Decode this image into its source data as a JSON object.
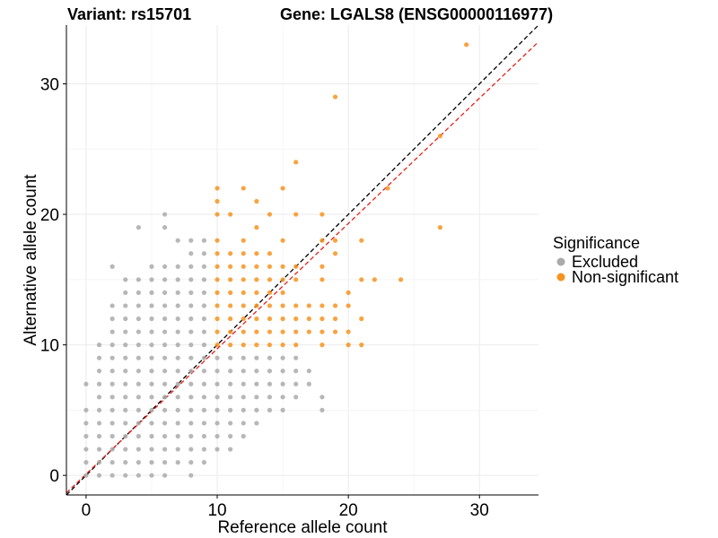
{
  "chart_data": {
    "type": "scatter",
    "title_left": "Variant: rs15701",
    "title_right": "Gene: LGALS8 (ENSG00000116977)",
    "xlabel": "Reference allele count",
    "ylabel": "Alternative allele count",
    "xlim": [
      -1.5,
      34.5
    ],
    "ylim": [
      -1.5,
      34.5
    ],
    "x_ticks": [
      0,
      10,
      20,
      30
    ],
    "y_ticks": [
      0,
      10,
      20,
      30
    ],
    "grid": true,
    "legend": {
      "title": "Significance",
      "position": "right",
      "entries": [
        {
          "label": "Excluded",
          "color": "#aaaaaa"
        },
        {
          "label": "Non-significant",
          "color": "#f7931e"
        }
      ]
    },
    "reference_lines": [
      {
        "name": "identity",
        "color": "#000000",
        "style": "dashed",
        "slope": 1,
        "intercept": 0
      },
      {
        "name": "fit",
        "color": "#e8201a",
        "style": "dashed",
        "slope": 0.96,
        "intercept": 0.1
      }
    ],
    "series": [
      {
        "name": "Excluded",
        "color": "#aaaaaa",
        "points": [
          [
            0,
            7
          ],
          [
            0,
            5
          ],
          [
            0,
            4
          ],
          [
            0,
            3
          ],
          [
            0,
            2
          ],
          [
            0,
            1
          ],
          [
            0,
            0
          ],
          [
            1,
            10
          ],
          [
            1,
            9
          ],
          [
            1,
            8
          ],
          [
            1,
            7
          ],
          [
            1,
            6
          ],
          [
            1,
            5
          ],
          [
            1,
            4
          ],
          [
            1,
            3
          ],
          [
            1,
            2
          ],
          [
            1,
            1
          ],
          [
            1,
            0
          ],
          [
            2,
            16
          ],
          [
            2,
            13
          ],
          [
            2,
            12
          ],
          [
            2,
            11
          ],
          [
            2,
            10
          ],
          [
            2,
            9
          ],
          [
            2,
            8
          ],
          [
            2,
            7
          ],
          [
            2,
            6
          ],
          [
            2,
            5
          ],
          [
            2,
            4
          ],
          [
            2,
            3
          ],
          [
            2,
            2
          ],
          [
            2,
            1
          ],
          [
            2,
            0
          ],
          [
            3,
            15
          ],
          [
            3,
            14
          ],
          [
            3,
            13
          ],
          [
            3,
            12
          ],
          [
            3,
            11
          ],
          [
            3,
            10
          ],
          [
            3,
            9
          ],
          [
            3,
            8
          ],
          [
            3,
            7
          ],
          [
            3,
            6
          ],
          [
            3,
            5
          ],
          [
            3,
            4
          ],
          [
            3,
            3
          ],
          [
            3,
            2
          ],
          [
            3,
            1
          ],
          [
            3,
            0
          ],
          [
            4,
            19
          ],
          [
            4,
            15
          ],
          [
            4,
            14
          ],
          [
            4,
            13
          ],
          [
            4,
            12
          ],
          [
            4,
            11
          ],
          [
            4,
            10
          ],
          [
            4,
            9
          ],
          [
            4,
            8
          ],
          [
            4,
            7
          ],
          [
            4,
            6
          ],
          [
            4,
            5
          ],
          [
            4,
            4
          ],
          [
            4,
            3
          ],
          [
            4,
            2
          ],
          [
            4,
            1
          ],
          [
            4,
            0
          ],
          [
            5,
            16
          ],
          [
            5,
            15
          ],
          [
            5,
            14
          ],
          [
            5,
            13
          ],
          [
            5,
            12
          ],
          [
            5,
            11
          ],
          [
            5,
            10
          ],
          [
            5,
            9
          ],
          [
            5,
            8
          ],
          [
            5,
            7
          ],
          [
            5,
            6
          ],
          [
            5,
            5
          ],
          [
            5,
            4
          ],
          [
            5,
            3
          ],
          [
            5,
            2
          ],
          [
            5,
            1
          ],
          [
            5,
            0
          ],
          [
            6,
            20
          ],
          [
            6,
            19
          ],
          [
            6,
            16
          ],
          [
            6,
            15
          ],
          [
            6,
            14
          ],
          [
            6,
            13
          ],
          [
            6,
            12
          ],
          [
            6,
            11
          ],
          [
            6,
            10
          ],
          [
            6,
            9
          ],
          [
            6,
            8
          ],
          [
            6,
            7
          ],
          [
            6,
            6
          ],
          [
            6,
            5
          ],
          [
            6,
            4
          ],
          [
            6,
            3
          ],
          [
            6,
            2
          ],
          [
            6,
            1
          ],
          [
            6,
            0
          ],
          [
            7,
            18
          ],
          [
            7,
            16
          ],
          [
            7,
            15
          ],
          [
            7,
            14
          ],
          [
            7,
            13
          ],
          [
            7,
            12
          ],
          [
            7,
            11
          ],
          [
            7,
            10
          ],
          [
            7,
            9
          ],
          [
            7,
            8
          ],
          [
            7,
            7
          ],
          [
            7,
            6
          ],
          [
            7,
            5
          ],
          [
            7,
            4
          ],
          [
            7,
            3
          ],
          [
            7,
            2
          ],
          [
            7,
            1
          ],
          [
            8,
            18
          ],
          [
            8,
            17
          ],
          [
            8,
            16
          ],
          [
            8,
            15
          ],
          [
            8,
            14
          ],
          [
            8,
            13
          ],
          [
            8,
            12
          ],
          [
            8,
            11
          ],
          [
            8,
            10
          ],
          [
            8,
            9
          ],
          [
            8,
            8
          ],
          [
            8,
            7
          ],
          [
            8,
            6
          ],
          [
            8,
            5
          ],
          [
            8,
            4
          ],
          [
            8,
            3
          ],
          [
            8,
            2
          ],
          [
            8,
            1
          ],
          [
            8,
            0
          ],
          [
            9,
            18
          ],
          [
            9,
            17
          ],
          [
            9,
            16
          ],
          [
            9,
            15
          ],
          [
            9,
            14
          ],
          [
            9,
            13
          ],
          [
            9,
            12
          ],
          [
            9,
            11
          ],
          [
            9,
            10
          ],
          [
            9,
            9
          ],
          [
            9,
            8
          ],
          [
            9,
            7
          ],
          [
            9,
            6
          ],
          [
            9,
            5
          ],
          [
            9,
            4
          ],
          [
            9,
            3
          ],
          [
            9,
            2
          ],
          [
            9,
            1
          ],
          [
            10,
            9
          ],
          [
            10,
            8
          ],
          [
            10,
            7
          ],
          [
            10,
            6
          ],
          [
            10,
            5
          ],
          [
            10,
            4
          ],
          [
            10,
            3
          ],
          [
            10,
            2
          ],
          [
            11,
            9
          ],
          [
            11,
            8
          ],
          [
            11,
            7
          ],
          [
            11,
            6
          ],
          [
            11,
            5
          ],
          [
            11,
            4
          ],
          [
            11,
            3
          ],
          [
            11,
            2
          ],
          [
            12,
            9
          ],
          [
            12,
            8
          ],
          [
            12,
            7
          ],
          [
            12,
            6
          ],
          [
            12,
            5
          ],
          [
            12,
            4
          ],
          [
            12,
            3
          ],
          [
            13,
            9
          ],
          [
            13,
            8
          ],
          [
            13,
            7
          ],
          [
            13,
            6
          ],
          [
            13,
            5
          ],
          [
            13,
            4
          ],
          [
            14,
            9
          ],
          [
            14,
            8
          ],
          [
            14,
            7
          ],
          [
            14,
            6
          ],
          [
            14,
            5
          ],
          [
            15,
            9
          ],
          [
            15,
            8
          ],
          [
            15,
            7
          ],
          [
            15,
            6
          ],
          [
            15,
            5
          ],
          [
            16,
            9
          ],
          [
            16,
            8
          ],
          [
            16,
            7
          ],
          [
            16,
            6
          ],
          [
            17,
            8
          ],
          [
            17,
            7
          ],
          [
            18,
            6
          ],
          [
            18,
            5
          ]
        ]
      },
      {
        "name": "Non-significant",
        "color": "#f7931e",
        "points": [
          [
            29,
            33
          ],
          [
            19,
            29
          ],
          [
            16,
            24
          ],
          [
            15,
            22
          ],
          [
            27,
            26
          ],
          [
            27,
            19
          ],
          [
            23,
            22
          ],
          [
            10,
            22
          ],
          [
            10,
            21
          ],
          [
            10,
            20
          ],
          [
            10,
            18
          ],
          [
            10,
            17
          ],
          [
            10,
            16
          ],
          [
            10,
            15
          ],
          [
            10,
            14
          ],
          [
            10,
            13
          ],
          [
            10,
            12
          ],
          [
            10,
            11
          ],
          [
            10,
            10
          ],
          [
            11,
            20
          ],
          [
            11,
            17
          ],
          [
            11,
            16
          ],
          [
            11,
            15
          ],
          [
            11,
            14
          ],
          [
            11,
            13
          ],
          [
            11,
            12
          ],
          [
            11,
            11
          ],
          [
            11,
            10
          ],
          [
            12,
            22
          ],
          [
            12,
            18
          ],
          [
            12,
            17
          ],
          [
            12,
            16
          ],
          [
            12,
            15
          ],
          [
            12,
            14
          ],
          [
            12,
            13
          ],
          [
            12,
            12
          ],
          [
            12,
            11
          ],
          [
            12,
            10
          ],
          [
            13,
            21
          ],
          [
            13,
            19
          ],
          [
            13,
            17
          ],
          [
            13,
            16
          ],
          [
            13,
            15
          ],
          [
            13,
            14
          ],
          [
            13,
            13
          ],
          [
            13,
            12
          ],
          [
            13,
            11
          ],
          [
            13,
            10
          ],
          [
            14,
            20
          ],
          [
            14,
            17
          ],
          [
            14,
            16
          ],
          [
            14,
            15
          ],
          [
            14,
            14
          ],
          [
            14,
            13
          ],
          [
            14,
            12
          ],
          [
            14,
            11
          ],
          [
            14,
            10
          ],
          [
            15,
            18
          ],
          [
            15,
            16
          ],
          [
            15,
            15
          ],
          [
            15,
            14
          ],
          [
            15,
            13
          ],
          [
            15,
            12
          ],
          [
            15,
            11
          ],
          [
            15,
            10
          ],
          [
            16,
            20
          ],
          [
            16,
            16
          ],
          [
            16,
            15
          ],
          [
            16,
            13
          ],
          [
            16,
            12
          ],
          [
            16,
            11
          ],
          [
            16,
            10
          ],
          [
            17,
            13
          ],
          [
            17,
            12
          ],
          [
            17,
            11
          ],
          [
            18,
            20
          ],
          [
            18,
            18
          ],
          [
            18,
            16
          ],
          [
            18,
            15
          ],
          [
            18,
            13
          ],
          [
            18,
            12
          ],
          [
            18,
            11
          ],
          [
            18,
            10
          ],
          [
            19,
            18
          ],
          [
            19,
            17
          ],
          [
            19,
            13
          ],
          [
            19,
            12
          ],
          [
            19,
            11
          ],
          [
            20,
            14
          ],
          [
            20,
            13
          ],
          [
            20,
            11
          ],
          [
            20,
            10
          ],
          [
            21,
            18
          ],
          [
            21,
            15
          ],
          [
            21,
            12
          ],
          [
            21,
            10
          ],
          [
            22,
            15
          ],
          [
            24,
            15
          ]
        ]
      }
    ]
  }
}
